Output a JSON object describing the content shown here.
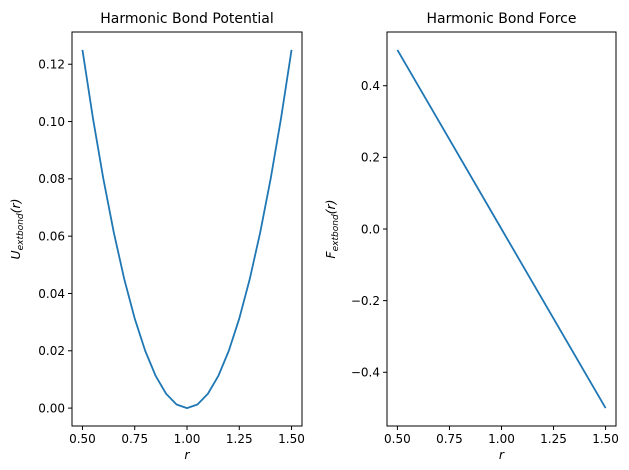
{
  "chart_data": [
    {
      "type": "line",
      "title": "Harmonic Bond Potential",
      "xlabel": "r",
      "ylabel": {
        "main": "U",
        "sub": "extbond",
        "suffix": "(r)"
      },
      "xlim": [
        0.45,
        1.55
      ],
      "ylim": [
        -0.00625,
        0.13125
      ],
      "xticks": [
        {
          "v": 0.5,
          "t": "0.50"
        },
        {
          "v": 0.75,
          "t": "0.75"
        },
        {
          "v": 1.0,
          "t": "1.00"
        },
        {
          "v": 1.25,
          "t": "1.25"
        },
        {
          "v": 1.5,
          "t": "1.50"
        }
      ],
      "yticks": [
        {
          "v": 0.0,
          "t": "0.00"
        },
        {
          "v": 0.02,
          "t": "0.02"
        },
        {
          "v": 0.04,
          "t": "0.04"
        },
        {
          "v": 0.06,
          "t": "0.06"
        },
        {
          "v": 0.08,
          "t": "0.08"
        },
        {
          "v": 0.1,
          "t": "0.10"
        },
        {
          "v": 0.12,
          "t": "0.12"
        }
      ],
      "color": "#1f77b4",
      "series": [
        {
          "x": [
            0.5,
            0.55,
            0.6,
            0.65,
            0.7,
            0.75,
            0.8,
            0.85,
            0.9,
            0.95,
            1.0,
            1.05,
            1.1,
            1.15,
            1.2,
            1.25,
            1.3,
            1.35,
            1.4,
            1.45,
            1.5
          ],
          "y": [
            0.125,
            0.10125,
            0.08,
            0.06125,
            0.045,
            0.03125,
            0.02,
            0.01125,
            0.005,
            0.00125,
            0.0,
            0.00125,
            0.005,
            0.01125,
            0.02,
            0.03125,
            0.045,
            0.06125,
            0.08,
            0.10125,
            0.125
          ]
        }
      ]
    },
    {
      "type": "line",
      "title": "Harmonic Bond Force",
      "xlabel": "r",
      "ylabel": {
        "main": "F",
        "sub": "extbond",
        "suffix": "(r)"
      },
      "xlim": [
        0.45,
        1.55
      ],
      "ylim": [
        -0.55,
        0.55
      ],
      "xticks": [
        {
          "v": 0.5,
          "t": "0.50"
        },
        {
          "v": 0.75,
          "t": "0.75"
        },
        {
          "v": 1.0,
          "t": "1.00"
        },
        {
          "v": 1.25,
          "t": "1.25"
        },
        {
          "v": 1.5,
          "t": "1.50"
        }
      ],
      "yticks": [
        {
          "v": -0.4,
          "t": "−0.4"
        },
        {
          "v": -0.2,
          "t": "−0.2"
        },
        {
          "v": 0.0,
          "t": "0.0"
        },
        {
          "v": 0.2,
          "t": "0.2"
        },
        {
          "v": 0.4,
          "t": "0.4"
        }
      ],
      "color": "#1f77b4",
      "series": [
        {
          "x": [
            0.5,
            1.0,
            1.5
          ],
          "y": [
            0.5,
            0.0,
            -0.5
          ]
        }
      ]
    }
  ]
}
